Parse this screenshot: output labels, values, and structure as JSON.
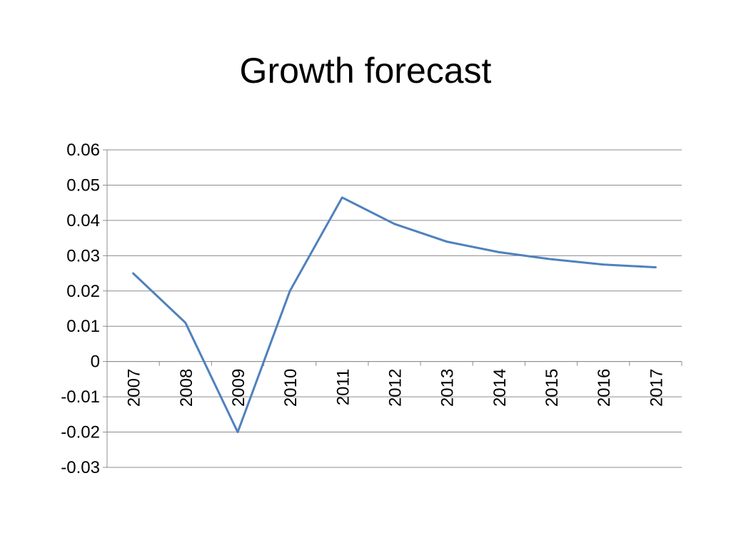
{
  "chart_data": {
    "type": "line",
    "title": "Growth forecast",
    "xlabel": "",
    "ylabel": "",
    "categories": [
      "2007",
      "2008",
      "2009",
      "2010",
      "2011",
      "2012",
      "2013",
      "2014",
      "2015",
      "2016",
      "2017"
    ],
    "series": [
      {
        "values": [
          0.025,
          0.011,
          -0.02,
          0.02,
          0.0465,
          0.039,
          0.034,
          0.031,
          0.029,
          0.0275,
          0.0267
        ],
        "color": "#4f81bd"
      }
    ],
    "ylim": [
      -0.03,
      0.06
    ],
    "yticks": [
      "0.06",
      "0.05",
      "0.04",
      "0.03",
      "0.02",
      "0.01",
      "0",
      "-0.01",
      "-0.02",
      "-0.03"
    ],
    "grid": true,
    "legend": "none"
  }
}
